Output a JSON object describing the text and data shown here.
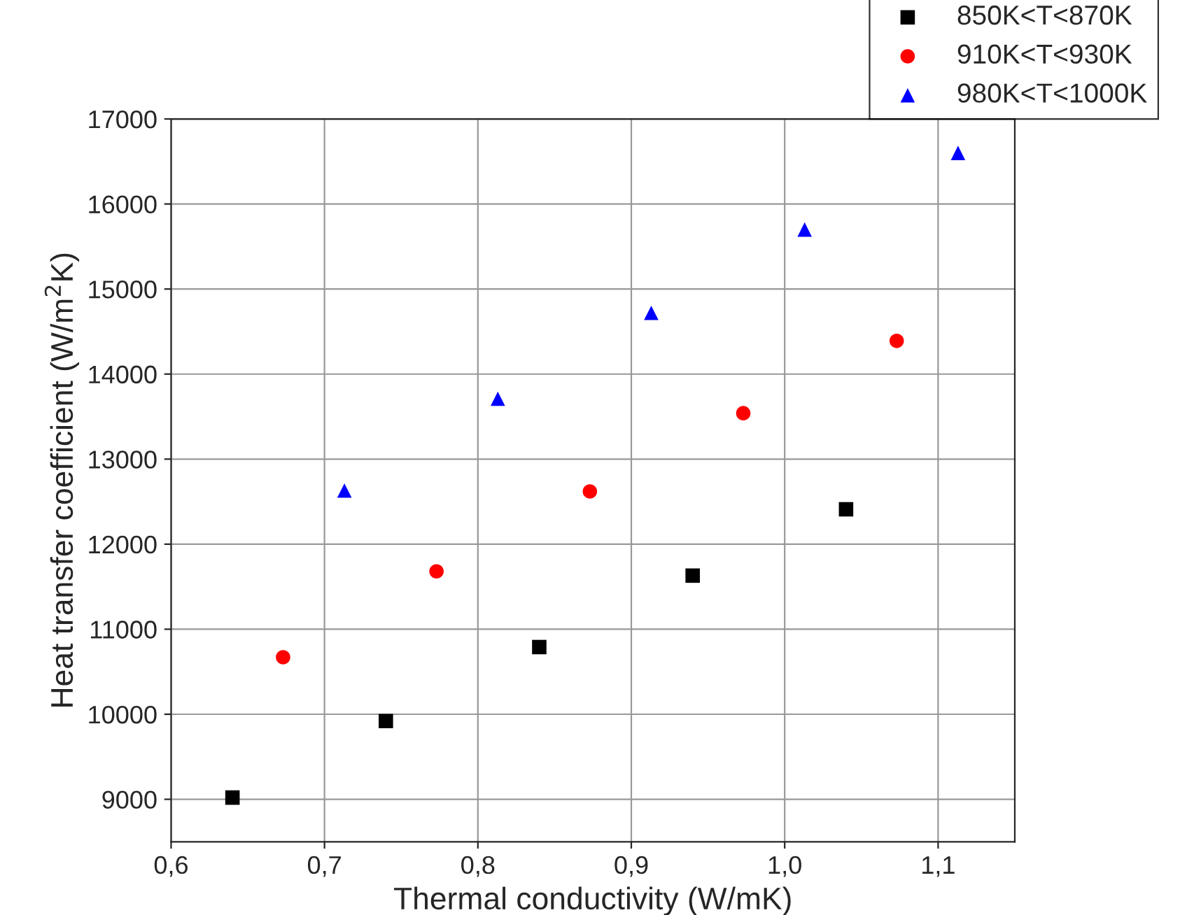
{
  "chart_data": {
    "type": "scatter",
    "xlabel": "Thermal conductivity (W/mK)",
    "ylabel": "Heat transfer coefficient (W/m$^{2}$K)",
    "xlim": [
      0.6,
      1.15
    ],
    "xticks": [
      {
        "value": 0.6,
        "label": "0,6"
      },
      {
        "value": 0.7,
        "label": "0,7"
      },
      {
        "value": 0.8,
        "label": "0,8"
      },
      {
        "value": 0.9,
        "label": "0,9"
      },
      {
        "value": 1.0,
        "label": "1,0"
      },
      {
        "value": 1.1,
        "label": "1,1"
      }
    ],
    "ylim": [
      8500,
      17000
    ],
    "yticks": [
      9000,
      10000,
      11000,
      12000,
      13000,
      14000,
      15000,
      16000,
      17000
    ],
    "grid": true,
    "legend": "top right",
    "series": [
      {
        "name": "850K<T<870K",
        "color": "#000000",
        "marker": "square",
        "x": [
          0.64,
          0.74,
          0.84,
          0.94,
          1.04
        ],
        "values": [
          9020,
          9920,
          10790,
          11630,
          12410
        ]
      },
      {
        "name": "910K<T<930K",
        "color": "#ff0000",
        "marker": "circle",
        "x": [
          0.673,
          0.773,
          0.873,
          0.973,
          1.073
        ],
        "values": [
          10670,
          11680,
          12620,
          13540,
          14390
        ]
      },
      {
        "name": "980K<T<1000K",
        "color": "#0000ff",
        "marker": "triangle",
        "x": [
          0.713,
          0.813,
          0.913,
          1.013,
          1.113
        ],
        "values": [
          12630,
          13710,
          14720,
          15700,
          16600
        ]
      }
    ]
  }
}
